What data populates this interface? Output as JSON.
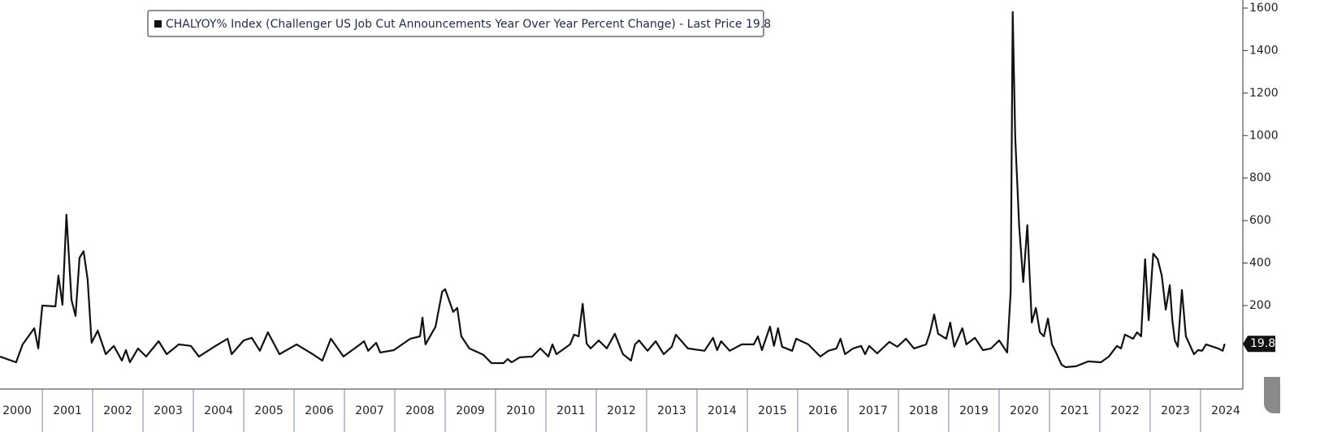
{
  "chart_data": {
    "type": "line",
    "x": [
      2000.16,
      2000.48,
      2000.61,
      2000.84,
      2000.92,
      2001.0,
      2001.26,
      2001.32,
      2001.4,
      2001.48,
      2001.58,
      2001.66,
      2001.74,
      2001.82,
      2001.9,
      2001.98,
      2002.1,
      2002.26,
      2002.42,
      2002.58,
      2002.66,
      2002.74,
      2002.9,
      2003.06,
      2003.31,
      2003.47,
      2003.71,
      2003.95,
      2004.11,
      2004.44,
      2004.68,
      2004.76,
      2005.0,
      2005.16,
      2005.32,
      2005.48,
      2005.71,
      2006.05,
      2006.37,
      2006.56,
      2006.73,
      2006.9,
      2006.98,
      2007.31,
      2007.39,
      2007.47,
      2007.63,
      2007.71,
      2007.98,
      2008.31,
      2008.5,
      2008.55,
      2008.61,
      2008.81,
      2008.94,
      2009.0,
      2009.16,
      2009.24,
      2009.32,
      2009.48,
      2009.76,
      2009.92,
      2010.16,
      2010.24,
      2010.32,
      2010.48,
      2010.73,
      2010.89,
      2011.05,
      2011.13,
      2011.21,
      2011.48,
      2011.56,
      2011.65,
      2011.73,
      2011.81,
      2011.89,
      2012.05,
      2012.21,
      2012.37,
      2012.53,
      2012.69,
      2012.77,
      2012.85,
      2013.02,
      2013.18,
      2013.34,
      2013.5,
      2013.58,
      2013.82,
      2014.15,
      2014.32,
      2014.4,
      2014.48,
      2014.65,
      2014.89,
      2015.13,
      2015.21,
      2015.29,
      2015.45,
      2015.53,
      2015.61,
      2015.69,
      2015.89,
      2015.97,
      2016.21,
      2016.45,
      2016.61,
      2016.77,
      2016.85,
      2016.94,
      2017.1,
      2017.26,
      2017.34,
      2017.42,
      2017.58,
      2017.82,
      2017.98,
      2018.15,
      2018.31,
      2018.55,
      2018.63,
      2018.71,
      2018.79,
      2018.95,
      2019.03,
      2019.11,
      2019.27,
      2019.35,
      2019.52,
      2019.68,
      2019.84,
      2020.0,
      2020.16,
      2020.23,
      2020.27,
      2020.32,
      2020.4,
      2020.48,
      2020.56,
      2020.65,
      2020.73,
      2020.81,
      2020.89,
      2020.97,
      2021.05,
      2021.13,
      2021.24,
      2021.32,
      2021.53,
      2021.77,
      2022.02,
      2022.18,
      2022.34,
      2022.42,
      2022.5,
      2022.66,
      2022.74,
      2022.82,
      2022.9,
      2022.97,
      2023.06,
      2023.15,
      2023.23,
      2023.31,
      2023.39,
      2023.44,
      2023.49,
      2023.55,
      2023.63,
      2023.71,
      2023.87,
      2023.95,
      2024.03,
      2024.11,
      2024.35,
      2024.44,
      2024.48
    ],
    "series": [
      {
        "name": "CHALYOY% Index (Challenger US Job Cut Announcements Year Over Year Percent Change) - Last Price 19.8",
        "color": "#111111",
        "values": [
          -40,
          -67,
          17,
          93,
          -2,
          200,
          196,
          341,
          204,
          628,
          227,
          151,
          425,
          456,
          322,
          25,
          82,
          -29,
          10,
          -59,
          -10,
          -67,
          -2,
          -40,
          32,
          -29,
          17,
          10,
          -40,
          10,
          44,
          -29,
          36,
          48,
          -13,
          74,
          -29,
          17,
          -29,
          -59,
          44,
          -13,
          -40,
          17,
          32,
          -13,
          25,
          -21,
          -10,
          44,
          55,
          143,
          17,
          101,
          265,
          277,
          170,
          189,
          55,
          -2,
          -32,
          -71,
          -71,
          -52,
          -67,
          -44,
          -40,
          -2,
          -40,
          17,
          -29,
          17,
          63,
          55,
          208,
          21,
          -2,
          36,
          -2,
          67,
          -29,
          -59,
          17,
          36,
          -13,
          32,
          -29,
          6,
          63,
          -2,
          -13,
          48,
          -10,
          32,
          -13,
          17,
          17,
          55,
          -10,
          101,
          10,
          93,
          6,
          -13,
          44,
          17,
          -40,
          -13,
          -2,
          44,
          -29,
          -2,
          10,
          -29,
          10,
          -25,
          29,
          6,
          44,
          -2,
          17,
          74,
          158,
          67,
          44,
          120,
          6,
          93,
          17,
          48,
          -10,
          -2,
          36,
          -21,
          265,
          1581,
          992,
          570,
          311,
          578,
          120,
          189,
          74,
          55,
          139,
          17,
          -21,
          -78,
          -90,
          -86,
          -63,
          -67,
          -40,
          10,
          -2,
          63,
          44,
          74,
          55,
          418,
          131,
          444,
          418,
          341,
          181,
          296,
          131,
          36,
          6,
          273,
          55,
          -29,
          -10,
          -13,
          17,
          -2,
          -13,
          19.8
        ]
      }
    ],
    "xlim": [
      2000.16,
      2024.84
    ],
    "xticks": [
      2000,
      2001,
      2002,
      2003,
      2004,
      2005,
      2006,
      2007,
      2008,
      2009,
      2010,
      2011,
      2012,
      2013,
      2014,
      2015,
      2016,
      2017,
      2018,
      2019,
      2020,
      2021,
      2022,
      2023,
      2024
    ],
    "ylim": [
      -193,
      1638
    ],
    "yticks": [
      200,
      400,
      600,
      800,
      1000,
      1200,
      1400,
      1600
    ]
  }
}
